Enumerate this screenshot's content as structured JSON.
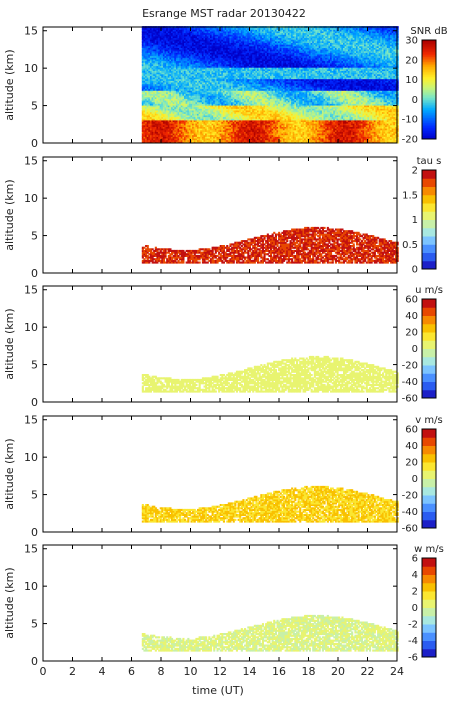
{
  "chart_data": {
    "title": "Esrange MST radar 20130422",
    "xlabel": "time (UT)",
    "x_ticks": [
      0,
      2,
      4,
      6,
      8,
      10,
      12,
      14,
      16,
      18,
      20,
      22,
      24
    ],
    "xlim": [
      0,
      24
    ],
    "data_start_time": 6.7,
    "panels": [
      {
        "type": "heatmap",
        "ylabel": "altitude (km)",
        "y_ticks": [
          0,
          5,
          10,
          15
        ],
        "ylim": [
          0,
          15.5
        ],
        "colorbar": {
          "label": "SNR dB",
          "ticks": [
            -20,
            -10,
            0,
            10,
            20,
            30
          ],
          "range": [
            -20,
            30
          ]
        },
        "field": "snr",
        "data_extent": [
          0,
          15.5
        ]
      },
      {
        "type": "heatmap",
        "ylabel": "altitude (km)",
        "y_ticks": [
          0,
          5,
          10,
          15
        ],
        "ylim": [
          0,
          15.5
        ],
        "colorbar": {
          "label": "tau s",
          "ticks": [
            0,
            0.5,
            1,
            1.5,
            2
          ],
          "range": [
            0,
            2
          ]
        },
        "field": "tau",
        "data_extent": [
          0,
          7
        ]
      },
      {
        "type": "heatmap",
        "ylabel": "altitude (km)",
        "y_ticks": [
          0,
          5,
          10,
          15
        ],
        "ylim": [
          0,
          15.5
        ],
        "colorbar": {
          "label": "u m/s",
          "ticks": [
            -60,
            -40,
            -20,
            0,
            20,
            40,
            60
          ],
          "range": [
            -60,
            60
          ]
        },
        "field": "u",
        "data_extent": [
          0,
          7
        ]
      },
      {
        "type": "heatmap",
        "ylabel": "altitude (km)",
        "y_ticks": [
          0,
          5,
          10,
          15
        ],
        "ylim": [
          0,
          15.5
        ],
        "colorbar": {
          "label": "v m/s",
          "ticks": [
            -60,
            -40,
            -20,
            0,
            20,
            40,
            60
          ],
          "range": [
            -60,
            60
          ]
        },
        "field": "v",
        "data_extent": [
          0,
          7
        ]
      },
      {
        "type": "heatmap",
        "ylabel": "altitude (km)",
        "y_ticks": [
          0,
          5,
          10,
          15
        ],
        "ylim": [
          0,
          15.5
        ],
        "colorbar": {
          "label": "w m/s",
          "ticks": [
            -6,
            -4,
            -2,
            0,
            2,
            4,
            6
          ],
          "range": [
            -6,
            6
          ]
        },
        "field": "w",
        "data_extent": [
          0,
          7
        ]
      }
    ]
  }
}
